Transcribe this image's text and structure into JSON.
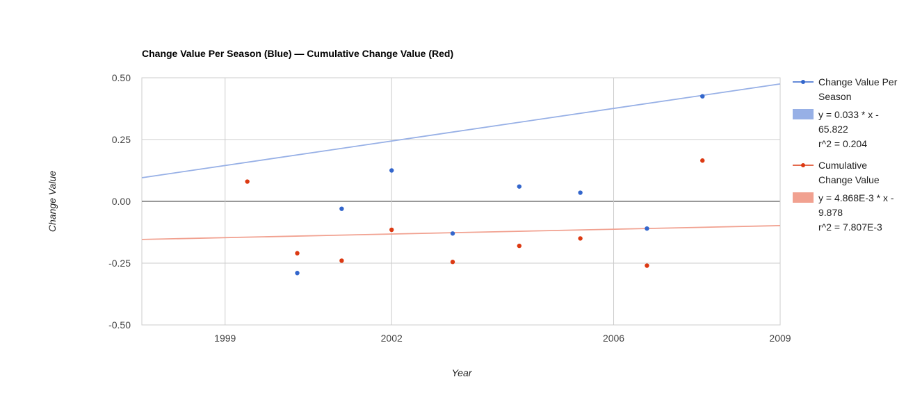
{
  "chart_data": {
    "type": "scatter",
    "title": "Change Value Per Season (Blue) — Cumulative Change Value (Red)",
    "xlabel": "Year",
    "ylabel": "Change Value",
    "xlim": [
      1997.5,
      2009
    ],
    "ylim": [
      -0.5,
      0.5
    ],
    "x_ticks": [
      1999,
      2002,
      2006,
      2009
    ],
    "y_ticks": [
      0.5,
      0.25,
      0.0,
      -0.25,
      -0.5
    ],
    "y_tick_labels": [
      "0.50",
      "0.25",
      "0.00",
      "-0.25",
      "-0.50"
    ],
    "grid": true,
    "legend_position": "right",
    "series": [
      {
        "name": "Change Value Per Season",
        "color": "#3366cc",
        "points": [
          {
            "x": 2000.3,
            "y": -0.29
          },
          {
            "x": 2001.1,
            "y": -0.03
          },
          {
            "x": 2002.0,
            "y": 0.125
          },
          {
            "x": 2003.1,
            "y": -0.13
          },
          {
            "x": 2004.3,
            "y": 0.06
          },
          {
            "x": 2005.4,
            "y": 0.035
          },
          {
            "x": 2006.6,
            "y": -0.11
          },
          {
            "x": 2007.6,
            "y": 0.425
          }
        ]
      },
      {
        "name": "Cumulative Change Value",
        "color": "#dc3912",
        "points": [
          {
            "x": 1999.4,
            "y": 0.08
          },
          {
            "x": 2000.3,
            "y": -0.21
          },
          {
            "x": 2001.1,
            "y": -0.24
          },
          {
            "x": 2002.0,
            "y": -0.115
          },
          {
            "x": 2003.1,
            "y": -0.245
          },
          {
            "x": 2004.3,
            "y": -0.18
          },
          {
            "x": 2005.4,
            "y": -0.15
          },
          {
            "x": 2006.6,
            "y": -0.26
          },
          {
            "x": 2007.6,
            "y": 0.165
          }
        ]
      }
    ],
    "trendlines": [
      {
        "color": "#97b0e6",
        "slope": 0.033,
        "intercept": -65.822,
        "label_lines": [
          "y = 0.033 * x -",
          "65.822",
          "r^2 = 0.204"
        ]
      },
      {
        "color": "#f1a190",
        "slope": 0.004868,
        "intercept": -9.878,
        "label_lines": [
          "y = 4.868E-3 * x -",
          "9.878",
          "r^2 = 7.807E-3"
        ]
      }
    ],
    "legend": [
      {
        "kind": "series",
        "series_index": 0,
        "lines": [
          "Change Value Per",
          "Season"
        ]
      },
      {
        "kind": "trend",
        "trend_index": 0
      },
      {
        "kind": "series",
        "series_index": 1,
        "lines": [
          "Cumulative",
          "Change Value"
        ]
      },
      {
        "kind": "trend",
        "trend_index": 1
      }
    ]
  }
}
